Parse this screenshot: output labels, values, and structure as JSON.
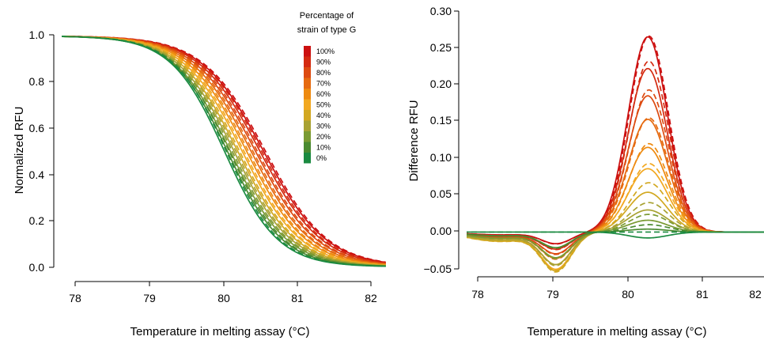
{
  "chart_data": [
    {
      "type": "line",
      "title": "",
      "xlabel": "Temperature in melting assay (°C)",
      "ylabel": "Normalized RFU",
      "xlim": [
        77.85,
        82.15
      ],
      "ylim": [
        0.0,
        1.0
      ],
      "xticks": [
        "78",
        "79",
        "80",
        "81",
        "82"
      ],
      "yticks": [
        "0.0",
        "0.2",
        "0.4",
        "0.6",
        "0.8",
        "1.0"
      ],
      "grid": false,
      "legend": {
        "title_lines": [
          "Percentage of",
          "strain of type G"
        ],
        "placement": "top-right",
        "entries": [
          "100%",
          "90%",
          "80%",
          "70%",
          "60%",
          "50%",
          "40%",
          "30%",
          "20%",
          "10%",
          "0%"
        ],
        "colors": [
          "#cc1010",
          "#d42a10",
          "#dd4a10",
          "#e66a10",
          "#ee8a10",
          "#f2a820",
          "#d2a820",
          "#a8a232",
          "#7a9a32",
          "#4a8a30",
          "#1a8a40"
        ]
      },
      "curve_model": "sigmoid; solid = measured, dashed = predicted",
      "series": [
        {
          "pct": 100,
          "color": "#cc1010",
          "tm": 80.55,
          "width": 0.42
        },
        {
          "pct": 90,
          "color": "#d42a10",
          "tm": 80.5,
          "width": 0.415
        },
        {
          "pct": 80,
          "color": "#dd4a10",
          "tm": 80.44,
          "width": 0.41
        },
        {
          "pct": 70,
          "color": "#e66a10",
          "tm": 80.38,
          "width": 0.405
        },
        {
          "pct": 60,
          "color": "#ee8a10",
          "tm": 80.32,
          "width": 0.4
        },
        {
          "pct": 50,
          "color": "#f2a820",
          "tm": 80.26,
          "width": 0.395
        },
        {
          "pct": 40,
          "color": "#d2a820",
          "tm": 80.2,
          "width": 0.39
        },
        {
          "pct": 30,
          "color": "#a8a232",
          "tm": 80.15,
          "width": 0.385
        },
        {
          "pct": 20,
          "color": "#7a9a32",
          "tm": 80.1,
          "width": 0.38
        },
        {
          "pct": 10,
          "color": "#4a8a30",
          "tm": 80.06,
          "width": 0.37
        },
        {
          "pct": 0,
          "color": "#1a8a40",
          "tm": 80.02,
          "width": 0.36
        }
      ]
    },
    {
      "type": "line",
      "title": "",
      "xlabel": "Temperature in melting assay (°C)",
      "ylabel": "Difference RFU",
      "xlim": [
        77.85,
        82.15
      ],
      "ylim": [
        -0.05,
        0.3
      ],
      "xticks": [
        "78",
        "79",
        "80",
        "81",
        "82"
      ],
      "yticks": [
        "−0.05",
        "0.00",
        "0.05",
        "0.10",
        "0.15",
        "0.20",
        "0.25",
        "0.30"
      ],
      "grid": false,
      "curve_model": "positive gaussian peak near 80.25 °C, negative dip near 79.0 °C; solid = measured, dashed = predicted",
      "series": [
        {
          "pct": 100,
          "color": "#cc1010",
          "peak_solid": 0.265,
          "peak_dashed": 0.266,
          "dip": -0.015
        },
        {
          "pct": 90,
          "color": "#d42a10",
          "peak_solid": 0.222,
          "peak_dashed": 0.232,
          "dip": -0.022
        },
        {
          "pct": 80,
          "color": "#dd4a10",
          "peak_solid": 0.185,
          "peak_dashed": 0.193,
          "dip": -0.028
        },
        {
          "pct": 70,
          "color": "#e66a10",
          "peak_solid": 0.153,
          "peak_dashed": 0.155,
          "dip": -0.034
        },
        {
          "pct": 60,
          "color": "#ee8a10",
          "peak_solid": 0.115,
          "peak_dashed": 0.12,
          "dip": -0.042
        },
        {
          "pct": 50,
          "color": "#f2a820",
          "peak_solid": 0.086,
          "peak_dashed": 0.093,
          "dip": -0.048
        },
        {
          "pct": 40,
          "color": "#d2a820",
          "peak_solid": 0.054,
          "peak_dashed": 0.067,
          "dip": -0.05
        },
        {
          "pct": 30,
          "color": "#a8a232",
          "peak_solid": 0.03,
          "peak_dashed": 0.04,
          "dip": -0.042
        },
        {
          "pct": 20,
          "color": "#7a9a32",
          "peak_solid": 0.016,
          "peak_dashed": 0.024,
          "dip": -0.033
        },
        {
          "pct": 10,
          "color": "#4a8a30",
          "peak_solid": 0.004,
          "peak_dashed": 0.01,
          "dip": -0.02
        },
        {
          "pct": 0,
          "color": "#1a8a40",
          "peak_solid": -0.008,
          "peak_dashed": 0.0,
          "dip": 0.0
        }
      ]
    }
  ]
}
